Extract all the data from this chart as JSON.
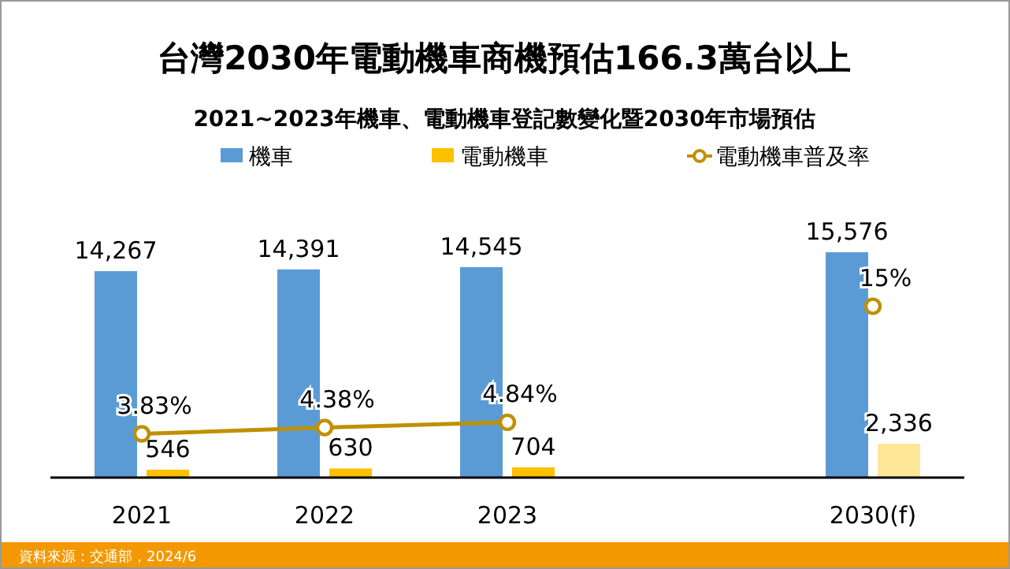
{
  "chart_data": {
    "type": "bar",
    "title": "台灣2030年電動機車商機預估166.3萬台以上",
    "subtitle": "2021~2023年機車、電動機車登記數變化暨2030年市場預估",
    "categories": [
      "2021",
      "2022",
      "2023",
      null,
      "2030(f)"
    ],
    "series": [
      {
        "name": "機車",
        "color": "#5b9bd5",
        "values": [
          14267,
          14391,
          14545,
          null,
          15576
        ],
        "value_labels": [
          "14,267",
          "14,391",
          "14,545",
          null,
          "15,576"
        ]
      },
      {
        "name": "電動機車",
        "color": "#ffc000",
        "colors": [
          "#ffc000",
          "#ffc000",
          "#ffc000",
          null,
          "#ffe699"
        ],
        "values": [
          546,
          630,
          704,
          null,
          2336
        ],
        "value_labels": [
          "546",
          "630",
          "704",
          null,
          "2,336"
        ]
      },
      {
        "name": "電動機車普及率",
        "type": "line",
        "axis": "y2",
        "color": "#bf9000",
        "marker": "circle",
        "values": [
          3.83,
          4.38,
          4.84,
          null,
          15
        ],
        "value_labels": [
          "3.83%",
          "4.38%",
          "4.84%",
          null,
          "15%"
        ]
      }
    ],
    "legend": "top",
    "tick_labels": "x",
    "annotations": [
      "資料來源：交通部，2024/6"
    ]
  }
}
